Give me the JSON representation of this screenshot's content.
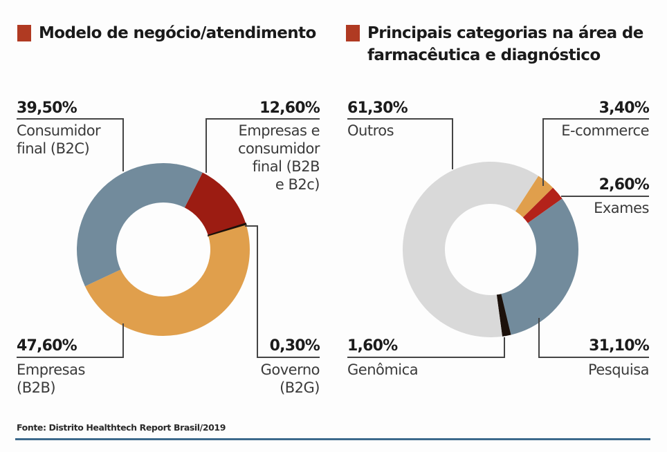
{
  "source": "Fonte: Distrito Healthtech Report Brasil/2019",
  "colors": {
    "accent_square": "#b03a22",
    "blue_grey": "#728b9c",
    "dark_red": "#9c1c12",
    "orange": "#e09f4c",
    "black": "#1c110b",
    "light_grey": "#d9d9d9",
    "leader_line": "#444444",
    "bottom_rule": "#3d6a8c"
  },
  "chart_data": [
    {
      "type": "pie",
      "variant": "donut",
      "title": "Modelo de negócio/atendimento",
      "start_angle_deg": 27,
      "direction": "clockwise",
      "slices": [
        {
          "label": "Empresas e consumidor final (B2B e B2c)",
          "display_label": "Empresas e\nconsumidor\nfinal (B2B\ne B2c)",
          "value": 12.6,
          "value_text": "12,60%",
          "color": "#9c1c12"
        },
        {
          "label": "Governo (B2G)",
          "display_label": "Governo\n(B2G)",
          "value": 0.3,
          "value_text": "0,30%",
          "color": "#1c110b"
        },
        {
          "label": "Empresas (B2B)",
          "display_label": "Empresas\n(B2B)",
          "value": 47.6,
          "value_text": "47,60%",
          "color": "#e09f4c"
        },
        {
          "label": "Consumidor final (B2C)",
          "display_label": "Consumidor\nfinal (B2C)",
          "value": 39.5,
          "value_text": "39,50%",
          "color": "#728b9c"
        }
      ]
    },
    {
      "type": "pie",
      "variant": "donut",
      "title": "Principais categorias na área de farmacêutica e diagnóstico",
      "title_lines": [
        "Principais categorias na área de",
        "farmacêutica e diagnóstico"
      ],
      "start_angle_deg": 33,
      "direction": "clockwise",
      "slices": [
        {
          "label": "E-commerce",
          "display_label": "E-commerce",
          "value": 3.4,
          "value_text": "3,40%",
          "color": "#e09f4c"
        },
        {
          "label": "Exames",
          "display_label": "Exames",
          "value": 2.6,
          "value_text": "2,60%",
          "color": "#b3221a"
        },
        {
          "label": "Pesquisa",
          "display_label": "Pesquisa",
          "value": 31.1,
          "value_text": "31,10%",
          "color": "#728b9c"
        },
        {
          "label": "Genômica",
          "display_label": "Genômica",
          "value": 1.6,
          "value_text": "1,60%",
          "color": "#1c110b"
        },
        {
          "label": "Outros",
          "display_label": "Outros",
          "value": 61.3,
          "value_text": "61,30%",
          "color": "#d9d9d9"
        }
      ]
    }
  ]
}
